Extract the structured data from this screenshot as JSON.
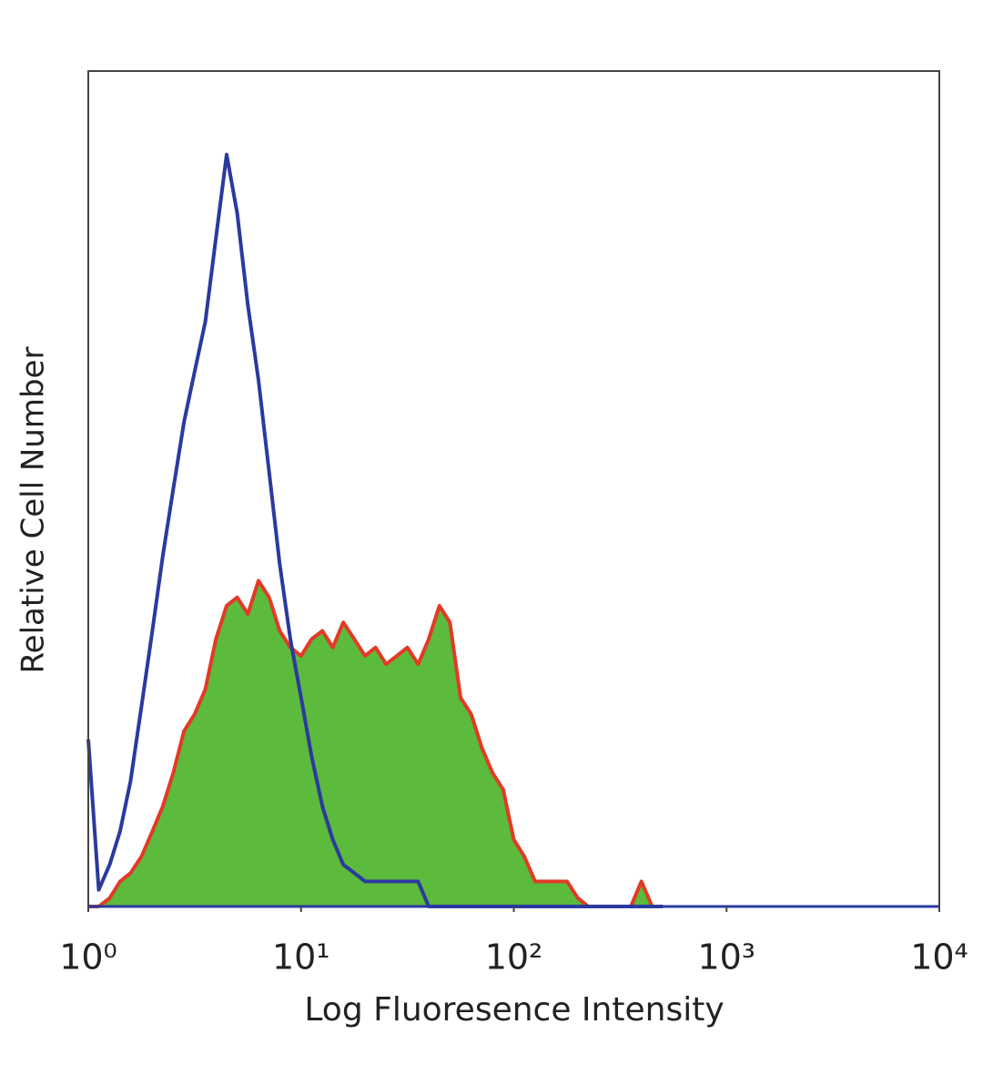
{
  "chart_data": {
    "type": "histogram-line",
    "x_label": "Log Fluoresence Intensity",
    "y_label": "Relative Cell Number",
    "x": [
      1,
      1.12,
      1.26,
      1.41,
      1.58,
      1.78,
      2.0,
      2.24,
      2.51,
      2.82,
      3.16,
      3.55,
      3.98,
      4.47,
      5.01,
      5.62,
      6.31,
      7.08,
      7.94,
      8.91,
      10.0,
      11.2,
      12.6,
      14.1,
      15.8,
      17.8,
      20.0,
      22.4,
      25.1,
      28.2,
      31.6,
      35.5,
      39.8,
      44.7,
      50.1,
      56.2,
      63.1,
      70.8,
      79.4,
      89.1,
      100,
      112,
      126,
      141,
      158,
      178,
      200,
      224,
      251,
      282,
      316,
      355,
      398,
      447,
      501
    ],
    "series": [
      {
        "color": "#e23a26",
        "fill": "#5cba3c",
        "values": [
          0,
          0,
          1,
          3,
          4,
          6,
          9,
          12,
          16,
          21,
          23,
          26,
          32,
          36,
          37,
          35,
          39,
          37,
          33,
          31,
          30,
          32,
          33,
          31,
          34,
          32,
          30,
          31,
          29,
          30,
          31,
          29,
          32,
          36,
          34,
          25,
          23,
          19,
          16,
          14,
          8,
          6,
          3,
          3,
          3,
          3,
          1,
          0,
          0,
          0,
          0,
          0,
          3,
          0,
          0
        ]
      },
      {
        "color": "#2b3a9e",
        "values": [
          20,
          2,
          5,
          9,
          15,
          24,
          33,
          42,
          50,
          58,
          64,
          70,
          80,
          90,
          83,
          72,
          63,
          52,
          41,
          32,
          25,
          18,
          12,
          8,
          5,
          4,
          3,
          3,
          3,
          3,
          3,
          3,
          0,
          0,
          0,
          0,
          0,
          0,
          0,
          0,
          0,
          0,
          0,
          0,
          0,
          0,
          0,
          0,
          0,
          0,
          0,
          0,
          0,
          0,
          0
        ]
      }
    ],
    "xlog": true,
    "xlim": [
      1,
      10000
    ],
    "xticks": [
      {
        "value": 1,
        "label": "10⁰"
      },
      {
        "value": 10,
        "label": "10¹"
      },
      {
        "value": 100,
        "label": "10²"
      },
      {
        "value": 1000,
        "label": "10³"
      },
      {
        "value": 10000,
        "label": "10⁴"
      }
    ],
    "ylim": [
      0,
      100
    ]
  }
}
